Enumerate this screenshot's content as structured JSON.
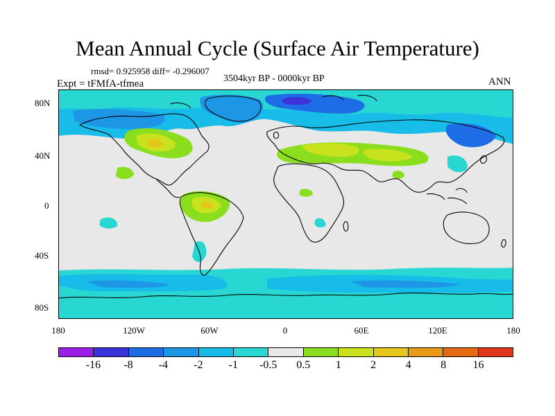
{
  "title": "Mean Annual Cycle (Surface Air Temperature)",
  "stats": "rmsd= 0.925958 diff= -0.296007",
  "period": "3504kyr BP - 0000kyr BP",
  "experiment": "Expt = tFMfA-tfmea",
  "season": "ANN",
  "map": {
    "y_ticks": [
      "80N",
      "40N",
      "0",
      "40S",
      "80S"
    ],
    "x_ticks": [
      "180",
      "120W",
      "60W",
      "0",
      "60E",
      "120E",
      "180"
    ],
    "background_color": "#e8e8e8",
    "coastline_color": "#000000"
  },
  "colorbar": {
    "colors": [
      "#9b1fe9",
      "#3b33d7",
      "#1e6de6",
      "#1e96e6",
      "#17bde8",
      "#28d7d2",
      "#e8e8e8",
      "#8ade1e",
      "#c8e21e",
      "#e6c61b",
      "#e69a18",
      "#e66a14",
      "#e0371b"
    ],
    "labels": [
      "-16",
      "-8",
      "-4",
      "-2",
      "-1",
      "-0.5",
      "0.5",
      "1",
      "2",
      "4",
      "8",
      "16"
    ]
  }
}
